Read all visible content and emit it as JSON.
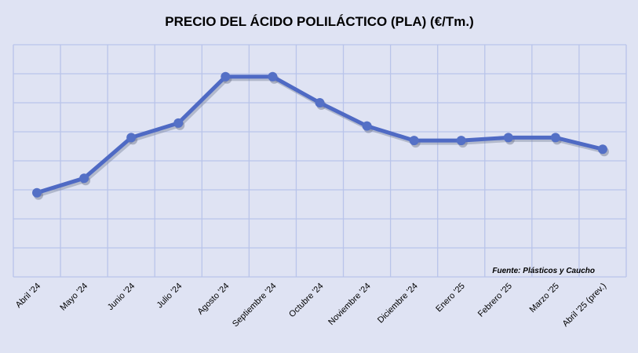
{
  "chart_data": {
    "type": "line",
    "title": "PRECIO DEL ÁCIDO POLILÁCTICO (PLA) (€/Tm.)",
    "xlabel": "",
    "ylabel": "",
    "ylim": [
      0,
      8
    ],
    "grid": true,
    "categories": [
      "Abril '24",
      "Mayo '24",
      "Junio '24",
      "Julio '24",
      "Agosto '24",
      "Septiembre '24",
      "Octubre '24",
      "Noviembre '24",
      "Diciembre '24",
      "Enero '25",
      "Febrero '25",
      "Marzo '25",
      "Abril '25 (prev.)"
    ],
    "series": [
      {
        "values": [
          2.9,
          3.4,
          4.8,
          5.3,
          6.9,
          6.9,
          6.0,
          5.2,
          4.7,
          4.7,
          4.8,
          4.8,
          4.4
        ]
      }
    ],
    "annotation": "Fuente: Plásticos y Caucho",
    "colors": {
      "line": "#4f6ac4",
      "marker": "#5470c6",
      "grid": "#b9c4ea",
      "background": "#dfe3f3"
    }
  }
}
